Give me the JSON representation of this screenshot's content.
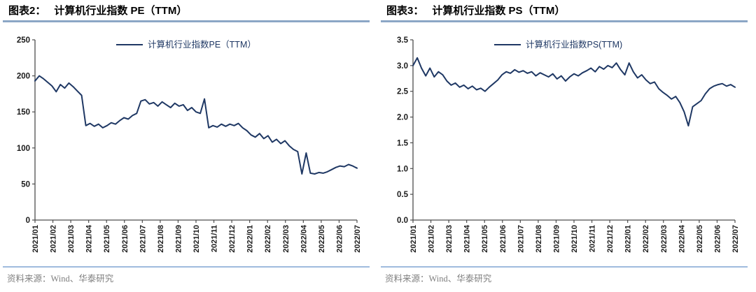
{
  "colors": {
    "series_line": "#1F3864",
    "legend_text": "#1F3864",
    "title_underline": "#8CA6C6",
    "bottom_rule": "#9FBBDD",
    "axis": "#4D4D4D",
    "tick_label": "#1A1A1A",
    "source_text": "#7F7F7F"
  },
  "charts": [
    {
      "title_prefix": "图表2：",
      "title_text": "计算机行业指数 PE（TTM）",
      "source": "资料来源：Wind、华泰研究"
    },
    {
      "title_prefix": "图表3：",
      "title_text": "计算机行业指数 PS（TTM）",
      "source": "资料来源：Wind、华泰研究"
    }
  ],
  "chart_data": [
    {
      "type": "line",
      "title": "计算机行业指数 PE（TTM）",
      "legend": "计算机行业指数PE（TTM）",
      "legend_position": "top-center",
      "grid": false,
      "ylim": [
        0,
        250
      ],
      "yticks": [
        0,
        50,
        100,
        150,
        200,
        250
      ],
      "ytick_labels": [
        "0",
        "50",
        "100",
        "150",
        "200",
        "250"
      ],
      "x_labels": [
        "2021/01",
        "2021/02",
        "2021/03",
        "2021/04",
        "2021/05",
        "2021/06",
        "2021/07",
        "2021/08",
        "2021/09",
        "2021/10",
        "2021/11",
        "2021/12",
        "2022/01",
        "2022/02",
        "2022/03",
        "2022/04",
        "2022/05",
        "2022/06",
        "2022/07"
      ],
      "values": [
        193,
        200,
        196,
        191,
        186,
        178,
        188,
        183,
        190,
        185,
        179,
        173,
        131,
        134,
        130,
        133,
        128,
        131,
        135,
        133,
        138,
        142,
        140,
        145,
        148,
        165,
        167,
        161,
        163,
        158,
        164,
        160,
        156,
        162,
        158,
        160,
        152,
        156,
        150,
        148,
        168,
        128,
        131,
        129,
        133,
        130,
        133,
        131,
        134,
        128,
        124,
        118,
        115,
        120,
        113,
        117,
        108,
        112,
        106,
        110,
        103,
        98,
        95,
        64,
        93,
        65,
        64,
        66,
        65,
        67,
        70,
        73,
        75,
        74,
        77,
        75,
        72
      ]
    },
    {
      "type": "line",
      "title": "计算机行业指数 PS（TTM）",
      "legend": "计算机行业指数PS(TTM)",
      "legend_position": "top-center",
      "grid": false,
      "ylim": [
        0,
        3.5
      ],
      "yticks": [
        0,
        0.5,
        1.0,
        1.5,
        2.0,
        2.5,
        3.0,
        3.5
      ],
      "ytick_labels": [
        "0.0",
        "0.5",
        "1.0",
        "1.5",
        "2.0",
        "2.5",
        "3.0",
        "3.5"
      ],
      "x_labels": [
        "2021/01",
        "2021/02",
        "2021/03",
        "2021/04",
        "2021/05",
        "2021/06",
        "2021/07",
        "2021/08",
        "2021/09",
        "2021/10",
        "2021/11",
        "2021/12",
        "2022/01",
        "2022/02",
        "2022/03",
        "2022/04",
        "2022/05",
        "2022/06",
        "2022/07"
      ],
      "values": [
        3.0,
        3.15,
        2.95,
        2.8,
        2.95,
        2.78,
        2.88,
        2.82,
        2.7,
        2.62,
        2.66,
        2.58,
        2.62,
        2.55,
        2.6,
        2.53,
        2.56,
        2.5,
        2.58,
        2.65,
        2.72,
        2.82,
        2.88,
        2.85,
        2.92,
        2.87,
        2.9,
        2.85,
        2.88,
        2.8,
        2.86,
        2.82,
        2.78,
        2.84,
        2.74,
        2.8,
        2.7,
        2.78,
        2.84,
        2.8,
        2.86,
        2.9,
        2.95,
        2.88,
        2.98,
        2.93,
        3.0,
        2.96,
        3.05,
        2.92,
        2.82,
        3.05,
        2.88,
        2.76,
        2.82,
        2.72,
        2.65,
        2.68,
        2.55,
        2.48,
        2.42,
        2.35,
        2.4,
        2.28,
        2.1,
        1.83,
        2.2,
        2.26,
        2.32,
        2.45,
        2.55,
        2.6,
        2.63,
        2.65,
        2.6,
        2.63,
        2.58
      ]
    }
  ]
}
